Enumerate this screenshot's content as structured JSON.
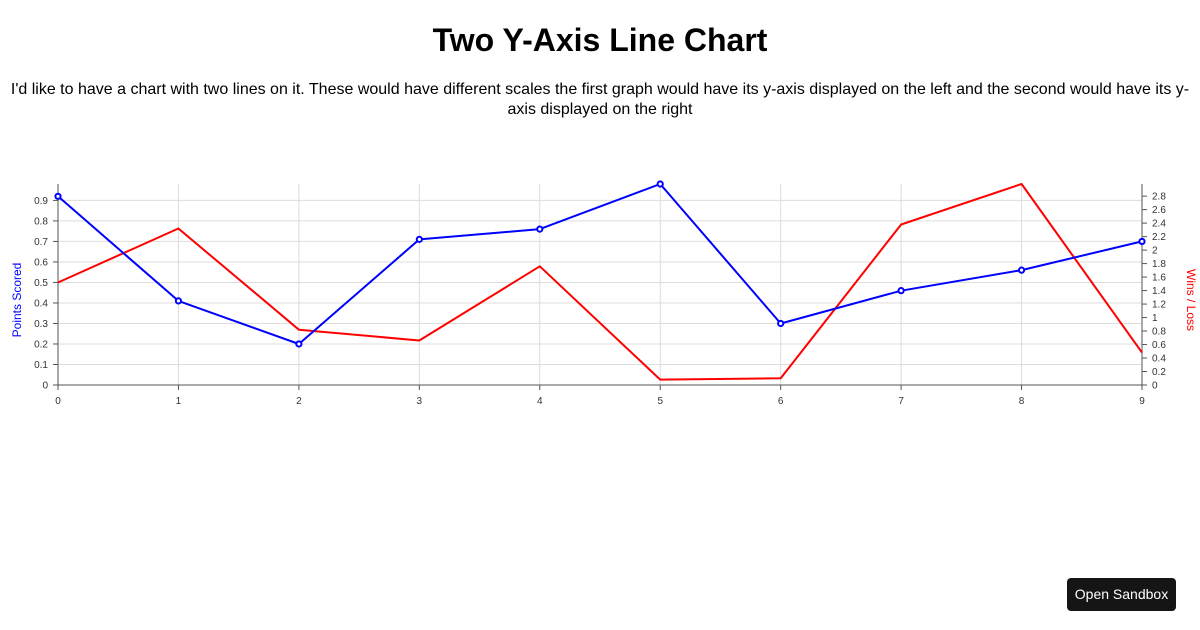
{
  "page": {
    "title": "Two Y-Axis Line Chart",
    "description": "I'd like to have a chart with two lines on it. These would have different scales the first graph would have its y-axis displayed on the left and the second would have its y-axis displayed on the right",
    "open_sandbox_label": "Open Sandbox"
  },
  "chart_data": {
    "type": "line",
    "title": "",
    "xlabel": "",
    "x": [
      0,
      1,
      2,
      3,
      4,
      5,
      6,
      7,
      8,
      9
    ],
    "x_ticks": [
      "0",
      "1",
      "2",
      "3",
      "4",
      "5",
      "6",
      "7",
      "8",
      "9"
    ],
    "grid": true,
    "series": [
      {
        "name": "Points Scored",
        "axis": "left",
        "color": "#0000ff",
        "markers": true,
        "values": [
          0.92,
          0.41,
          0.2,
          0.71,
          0.76,
          0.98,
          0.3,
          0.46,
          0.56,
          0.7
        ]
      },
      {
        "name": "Wins / Loss",
        "axis": "right",
        "color": "#ff0000",
        "markers": false,
        "values": [
          1.52,
          2.32,
          0.82,
          0.66,
          1.76,
          0.08,
          0.1,
          2.38,
          2.98,
          0.48
        ]
      }
    ],
    "y_left": {
      "label": "Points Scored",
      "color": "#0000ff",
      "ylim": [
        0,
        0.98
      ],
      "ticks": [
        "0",
        "0.1",
        "0.2",
        "0.3",
        "0.4",
        "0.5",
        "0.6",
        "0.7",
        "0.8",
        "0.9"
      ]
    },
    "y_right": {
      "label": "Wins / Loss",
      "color": "#ff0000",
      "ylim": [
        0,
        2.98
      ],
      "ticks": [
        "0",
        "0.2",
        "0.4",
        "0.6",
        "0.8",
        "1",
        "1.2",
        "1.4",
        "1.6",
        "1.8",
        "2",
        "2.2",
        "2.4",
        "2.6",
        "2.8"
      ]
    }
  }
}
